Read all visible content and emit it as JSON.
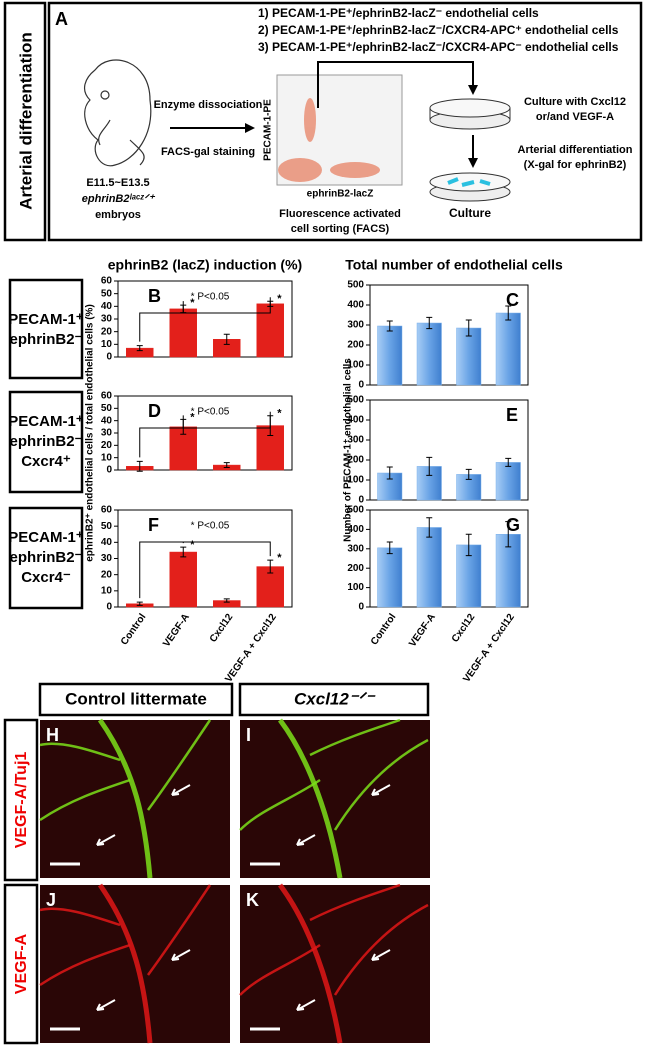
{
  "panel_a": {
    "letter": "A",
    "side_label": "Arterial differentiation",
    "populations": [
      "1) PECAM-1-PE⁺/ephrinB2-lacZ⁻ endothelial cells",
      "2) PECAM-1-PE⁺/ephrinB2-lacZ⁻/CXCR4-APC⁺ endothelial cells",
      "3) PECAM-1-PE⁺/ephrinB2-lacZ⁻/CXCR4-APC⁻ endothelial cells"
    ],
    "stage": "E11.5~E13.5",
    "genotype": "ephrinB2ˡᵃᶜᶻᐟ⁺",
    "embryos": "embryos",
    "step1": "Enzyme dissociation",
    "step2": "FACS-gal staining",
    "facs_y": "PECAM-1-PE",
    "facs_x": "ephrinB2-lacZ",
    "facs_caption": [
      "Fluorescence activated",
      "cell sorting (FACS)"
    ],
    "culture_text": [
      "Culture with Cxcl12",
      "or/and VEGF-A"
    ],
    "arterial_text": [
      "Arterial differentiation",
      "(X-gal for ephrinB2)"
    ],
    "culture": "Culture"
  },
  "row_labels": [
    [
      "PECAM-1⁺",
      "ephrinB2⁻"
    ],
    [
      "PECAM-1⁺",
      "ephrinB2⁻",
      "Cxcr4⁺"
    ],
    [
      "PECAM-1⁺",
      "ephrinB2⁻",
      "Cxcr4⁻"
    ]
  ],
  "chart_data": [
    {
      "type": "bar",
      "label": "B",
      "title": "ephrinB2 (lacZ) induction (%)",
      "values": [
        7,
        38,
        14,
        42
      ],
      "errors": [
        2,
        3,
        4,
        2
      ],
      "markers": [
        null,
        "*",
        null,
        "*"
      ],
      "significance": "* P<0.05",
      "color": "#e3201b",
      "ylim": [
        0,
        60
      ],
      "yticks": [
        0,
        10,
        20,
        30,
        40,
        50,
        60
      ]
    },
    {
      "type": "bar",
      "label": "D",
      "ylabel": "ephrinB2⁺ endothelial cells / total endothelial cells (%)",
      "values": [
        3,
        35,
        4,
        36
      ],
      "errors": [
        4,
        6,
        2,
        8
      ],
      "markers": [
        null,
        "*",
        null,
        "*"
      ],
      "significance": "* P<0.05",
      "color": "#e3201b",
      "ylim": [
        0,
        60
      ],
      "yticks": [
        0,
        10,
        20,
        30,
        40,
        50,
        60
      ]
    },
    {
      "type": "bar",
      "label": "F",
      "categories": [
        "Control",
        "VEGF-A",
        "Cxcl12",
        "VEGF-A + Cxcl12"
      ],
      "values": [
        2,
        34,
        4,
        25
      ],
      "errors": [
        1,
        3,
        1,
        4
      ],
      "markers": [
        null,
        "*",
        null,
        "*"
      ],
      "significance": "* P<0.05",
      "color": "#e3201b",
      "ylim": [
        0,
        60
      ],
      "yticks": [
        0,
        10,
        20,
        30,
        40,
        50,
        60
      ]
    },
    {
      "type": "bar",
      "label": "C",
      "title": "Total number of endothelial cells",
      "values": [
        295,
        310,
        285,
        360
      ],
      "errors": [
        25,
        28,
        40,
        35
      ],
      "color": "#7ab0ea",
      "ylim": [
        0,
        500
      ],
      "yticks": [
        0,
        100,
        200,
        300,
        400,
        500
      ]
    },
    {
      "type": "bar",
      "label": "E",
      "ylabel": "Number of PECAM-1⁺ endothelial cells",
      "values": [
        135,
        168,
        128,
        188
      ],
      "errors": [
        30,
        45,
        25,
        20
      ],
      "color": "#7ab0ea",
      "ylim": [
        0,
        500
      ],
      "yticks": [
        0,
        100,
        200,
        300,
        400,
        500
      ]
    },
    {
      "type": "bar",
      "label": "G",
      "categories": [
        "Control",
        "VEGF-A",
        "Cxcl12",
        "VEGF-A + Cxcl12"
      ],
      "values": [
        305,
        410,
        320,
        375
      ],
      "errors": [
        30,
        50,
        55,
        65
      ],
      "color": "#7ab0ea",
      "ylim": [
        0,
        500
      ],
      "yticks": [
        0,
        100,
        200,
        300,
        400,
        500
      ]
    }
  ],
  "images": {
    "headers": [
      "Control littermate",
      "Cxcl12⁻ᐟ⁻"
    ],
    "row_labels": [
      "VEGF-A/Tuj1",
      "VEGF-A"
    ],
    "letters": [
      "H",
      "I",
      "J",
      "K"
    ]
  }
}
